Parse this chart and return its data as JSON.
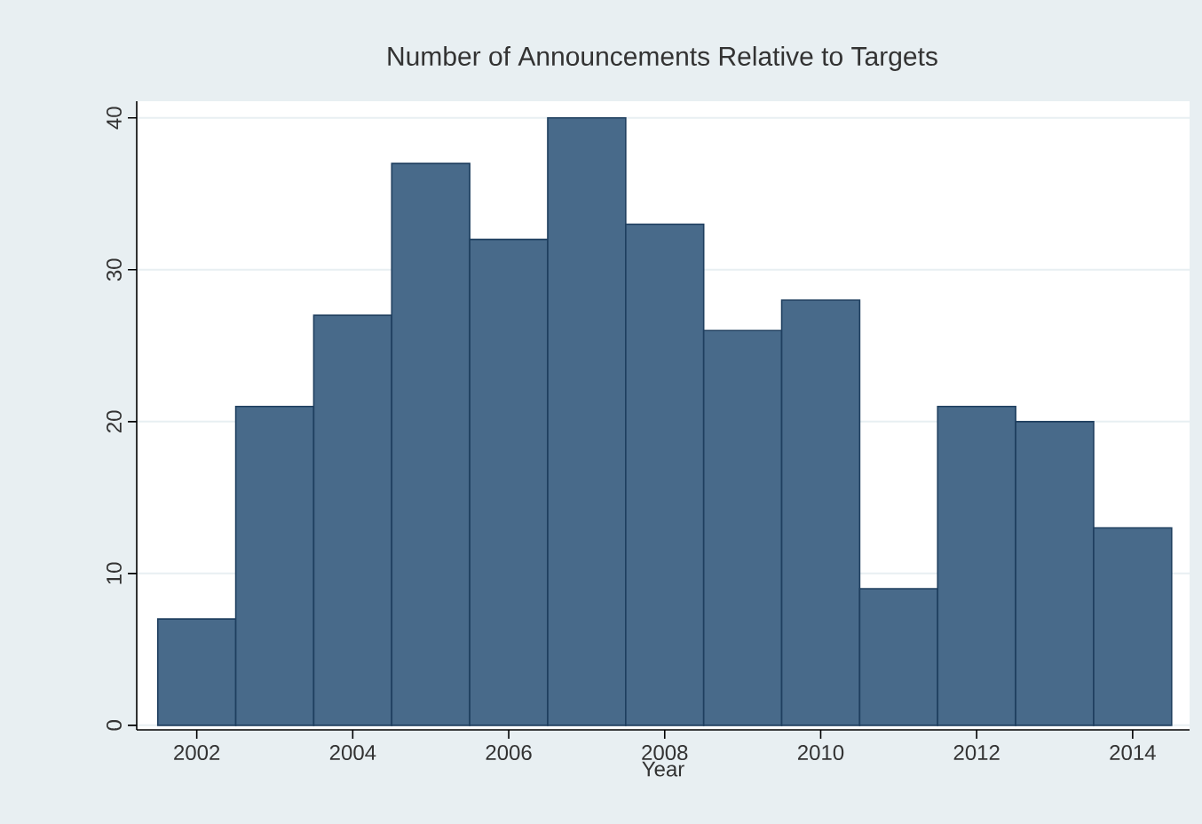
{
  "chart_data": {
    "type": "histogram",
    "title": "Number of Announcements Relative to Targets",
    "xlabel": "Year",
    "bins": [
      2001.5,
      2002.5,
      2003.5,
      2004.5,
      2005.5,
      2006.5,
      2007.5,
      2008.5,
      2009.5,
      2010.5,
      2011.5,
      2012.5,
      2013.5,
      2014.5
    ],
    "values": [
      7,
      21,
      27,
      37,
      32,
      40,
      33,
      26,
      28,
      9,
      21,
      20,
      13
    ],
    "color": "#486a8a",
    "xlim": [
      2001.23,
      2014.73
    ],
    "ylim": [
      -0.3,
      41.1
    ],
    "xticks": [
      2002,
      2004,
      2006,
      2008,
      2010,
      2012,
      2014
    ],
    "yticks": [
      0,
      10,
      20,
      30,
      40
    ],
    "grid": "y"
  }
}
